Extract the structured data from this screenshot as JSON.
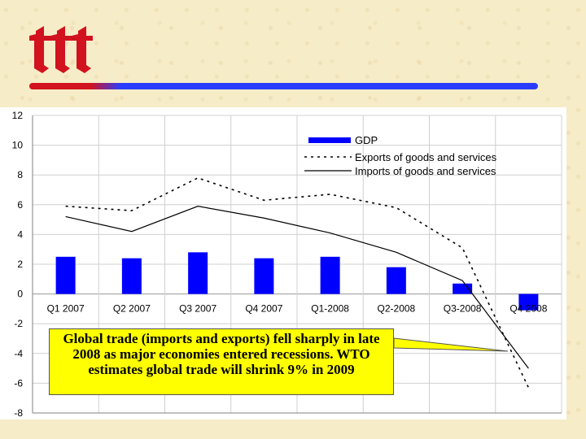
{
  "colors": {
    "background": "#f6ecc8",
    "logo_red": "#d2121e",
    "rule_blue": "#2a3cff",
    "gdp_bar": "#0000ff",
    "callout_fill": "#ffff00",
    "axis_line": "#808080",
    "text": "#000000"
  },
  "logo": {
    "icon": "itt-logo-mark"
  },
  "callout": {
    "text": "Global trade (imports and exports) fell sharply in late 2008 as major economies entered recessions.  WTO estimates global trade will shrink 9% in 2009"
  },
  "chart_data": {
    "type": "bar",
    "categories": [
      "Q1 2007",
      "Q2 2007",
      "Q3 2007",
      "Q4 2007",
      "Q1-2008",
      "Q2-2008",
      "Q3-2008",
      "Q4 2008"
    ],
    "ylim": [
      -8,
      12
    ],
    "yticks": [
      "12",
      "10",
      "8",
      "6",
      "4",
      "2",
      "0",
      "-2",
      "-4",
      "-6",
      "-8"
    ],
    "grid": true,
    "legend_position": "top-right",
    "series": [
      {
        "name": "GDP",
        "style": "bar",
        "values": [
          2.5,
          2.4,
          2.8,
          2.4,
          2.5,
          1.8,
          0.7,
          -1.1
        ]
      },
      {
        "name": "Exports of goods and services",
        "style": "dotted-line",
        "values": [
          5.9,
          5.6,
          7.8,
          6.3,
          6.7,
          5.8,
          3.1,
          -6.3
        ]
      },
      {
        "name": "Imports of goods and services",
        "style": "solid-line",
        "values": [
          5.2,
          4.2,
          5.9,
          5.1,
          4.1,
          2.8,
          0.9,
          -5.0
        ]
      }
    ]
  }
}
